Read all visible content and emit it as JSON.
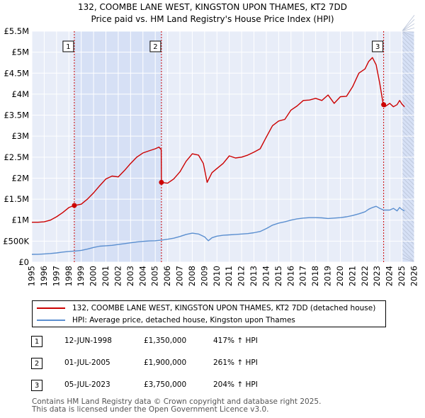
{
  "chart_data": {
    "type": "line",
    "title": "132, COOMBE LANE WEST, KINGSTON UPON THAMES, KT2 7DD",
    "subtitle": "Price paid vs. HM Land Registry's House Price Index (HPI)",
    "ylabel": "",
    "xlabel": "",
    "xlim": [
      1995,
      2026
    ],
    "ylim": [
      0,
      5500000
    ],
    "x_ticks": [
      1995,
      1996,
      1997,
      1998,
      1999,
      2000,
      2001,
      2002,
      2003,
      2004,
      2005,
      2006,
      2007,
      2008,
      2009,
      2010,
      2011,
      2012,
      2013,
      2014,
      2015,
      2016,
      2017,
      2018,
      2019,
      2020,
      2021,
      2022,
      2023,
      2024,
      2025,
      2026
    ],
    "y_ticks": [
      {
        "value": 0,
        "label": "£0"
      },
      {
        "value": 500000,
        "label": "£500K"
      },
      {
        "value": 1000000,
        "label": "£1M"
      },
      {
        "value": 1500000,
        "label": "£1.5M"
      },
      {
        "value": 2000000,
        "label": "£2M"
      },
      {
        "value": 2500000,
        "label": "£2.5M"
      },
      {
        "value": 3000000,
        "label": "£3M"
      },
      {
        "value": 3500000,
        "label": "£3.5M"
      },
      {
        "value": 4000000,
        "label": "£4M"
      },
      {
        "value": 4500000,
        "label": "£4.5M"
      },
      {
        "value": 5000000,
        "label": "£5M"
      },
      {
        "value": 5500000,
        "label": "£5.5M"
      }
    ],
    "grid": true,
    "series": [
      {
        "name": "132, COOMBE LANE WEST, KINGSTON UPON THAMES, KT2 7DD (detached house)",
        "color": "#cc0000",
        "x": [
          1995.0,
          1995.5,
          1996.0,
          1996.5,
          1997.0,
          1997.5,
          1998.0,
          1998.44,
          1998.46,
          1999.0,
          1999.5,
          2000.0,
          2000.5,
          2001.0,
          2001.5,
          2002.0,
          2002.5,
          2003.0,
          2003.5,
          2004.0,
          2004.5,
          2005.0,
          2005.3,
          2005.48,
          2005.5,
          2006.0,
          2006.5,
          2007.0,
          2007.5,
          2008.0,
          2008.5,
          2008.9,
          2009.2,
          2009.6,
          2010.0,
          2010.5,
          2011.0,
          2011.5,
          2012.0,
          2012.5,
          2013.0,
          2013.5,
          2014.0,
          2014.5,
          2015.0,
          2015.5,
          2016.0,
          2016.5,
          2017.0,
          2017.5,
          2018.0,
          2018.5,
          2019.0,
          2019.5,
          2020.0,
          2020.5,
          2021.0,
          2021.5,
          2022.0,
          2022.3,
          2022.6,
          2022.9,
          2023.2,
          2023.48,
          2023.6,
          2024.0,
          2024.3,
          2024.6,
          2024.8,
          2025.0,
          2025.2
        ],
        "values": [
          950000,
          950000,
          960000,
          1000000,
          1080000,
          1180000,
          1300000,
          1350000,
          1350000,
          1380000,
          1500000,
          1650000,
          1820000,
          1980000,
          2050000,
          2030000,
          2180000,
          2350000,
          2500000,
          2600000,
          2650000,
          2700000,
          2740000,
          2680000,
          1900000,
          1880000,
          1980000,
          2150000,
          2400000,
          2580000,
          2550000,
          2350000,
          1900000,
          2130000,
          2230000,
          2350000,
          2530000,
          2480000,
          2500000,
          2550000,
          2620000,
          2700000,
          2980000,
          3250000,
          3360000,
          3400000,
          3620000,
          3720000,
          3850000,
          3860000,
          3900000,
          3850000,
          3980000,
          3780000,
          3940000,
          3950000,
          4180000,
          4500000,
          4600000,
          4780000,
          4870000,
          4700000,
          4250000,
          3750000,
          3700000,
          3780000,
          3700000,
          3750000,
          3850000,
          3760000,
          3700000
        ]
      },
      {
        "name": "HPI: Average price, detached house, Kingston upon Thames",
        "color": "#5b8fd0",
        "x": [
          1995.0,
          1995.5,
          1996.0,
          1996.5,
          1997.0,
          1997.5,
          1998.0,
          1998.5,
          1999.0,
          1999.5,
          2000.0,
          2000.5,
          2001.0,
          2001.5,
          2002.0,
          2002.5,
          2003.0,
          2003.5,
          2004.0,
          2004.5,
          2005.0,
          2005.5,
          2006.0,
          2006.5,
          2007.0,
          2007.5,
          2008.0,
          2008.5,
          2009.0,
          2009.3,
          2009.6,
          2010.0,
          2010.5,
          2011.0,
          2011.5,
          2012.0,
          2012.5,
          2013.0,
          2013.5,
          2014.0,
          2014.5,
          2015.0,
          2015.5,
          2016.0,
          2016.5,
          2017.0,
          2017.5,
          2018.0,
          2018.5,
          2019.0,
          2019.5,
          2020.0,
          2020.5,
          2021.0,
          2021.5,
          2022.0,
          2022.3,
          2022.6,
          2022.9,
          2023.2,
          2023.5,
          2024.0,
          2024.3,
          2024.6,
          2024.8,
          2025.0,
          2025.2
        ],
        "values": [
          185000,
          188000,
          195000,
          205000,
          220000,
          240000,
          255000,
          265000,
          280000,
          310000,
          350000,
          380000,
          390000,
          400000,
          420000,
          440000,
          460000,
          480000,
          495000,
          505000,
          510000,
          525000,
          545000,
          570000,
          610000,
          660000,
          690000,
          670000,
          600000,
          510000,
          580000,
          620000,
          640000,
          650000,
          660000,
          670000,
          680000,
          700000,
          730000,
          800000,
          880000,
          930000,
          960000,
          1000000,
          1030000,
          1050000,
          1060000,
          1060000,
          1055000,
          1040000,
          1050000,
          1060000,
          1080000,
          1110000,
          1150000,
          1200000,
          1260000,
          1300000,
          1330000,
          1280000,
          1240000,
          1240000,
          1280000,
          1220000,
          1300000,
          1250000,
          1220000
        ]
      }
    ],
    "sales": [
      {
        "id": "1",
        "x": 1998.44,
        "price": 1350000,
        "date": "12-JUN-1998",
        "price_label": "£1,350,000",
        "hpi": "417% ↑ HPI"
      },
      {
        "id": "2",
        "x": 2005.5,
        "price": 1900000,
        "date": "01-JUL-2005",
        "price_label": "£1,900,000",
        "hpi": "261% ↑ HPI"
      },
      {
        "id": "3",
        "x": 2023.51,
        "price": 3750000,
        "date": "05-JUL-2023",
        "price_label": "£3,750,000",
        "hpi": "204% ↑ HPI"
      }
    ],
    "shaded_ranges": [
      [
        1998.44,
        2005.5
      ],
      [
        2025.0,
        2026.0
      ]
    ],
    "forecast_start": 2025.0
  },
  "colors": {
    "plot_bg": "#e8edf8",
    "shade": "#d6e0f5",
    "grid": "#ffffff",
    "sale_line": "#cc0000",
    "marker": "#cc0000"
  },
  "footer": {
    "line1": "Contains HM Land Registry data © Crown copyright and database right 2025.",
    "line2": "This data is licensed under the Open Government Licence v3.0."
  }
}
